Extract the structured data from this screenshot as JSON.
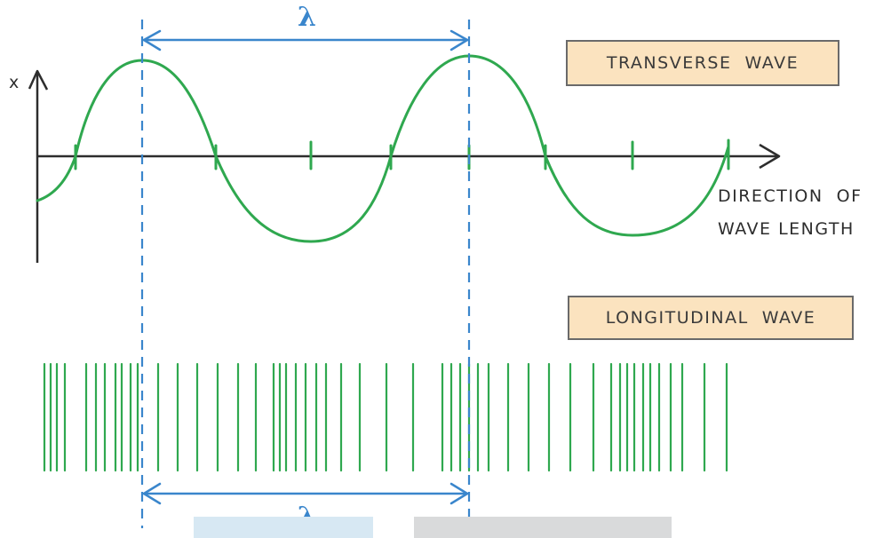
{
  "labels": {
    "transverse": "TRANSVERSE  WAVE",
    "longitudinal": "LONGITUDINAL  WAVE",
    "axis_x": "x",
    "direction_line1": "DIRECTION  OF",
    "direction_line2": "WAVE LENGTH",
    "wavelength_symbol_top": "λ",
    "wavelength_symbol_bottom": "λ"
  },
  "colors": {
    "wave": "#2fa84f",
    "wavelength_marker": "#3a86cc",
    "axis": "#2d2d2d",
    "label_fill": "#fbe3bf",
    "label_border": "#6a6a6a"
  },
  "icons": {
    "axis_arrow": "arrow-right-icon",
    "vertical_axis_arrow": "arrow-up-icon",
    "wavelength_arrow": "double-arrow-icon"
  }
}
